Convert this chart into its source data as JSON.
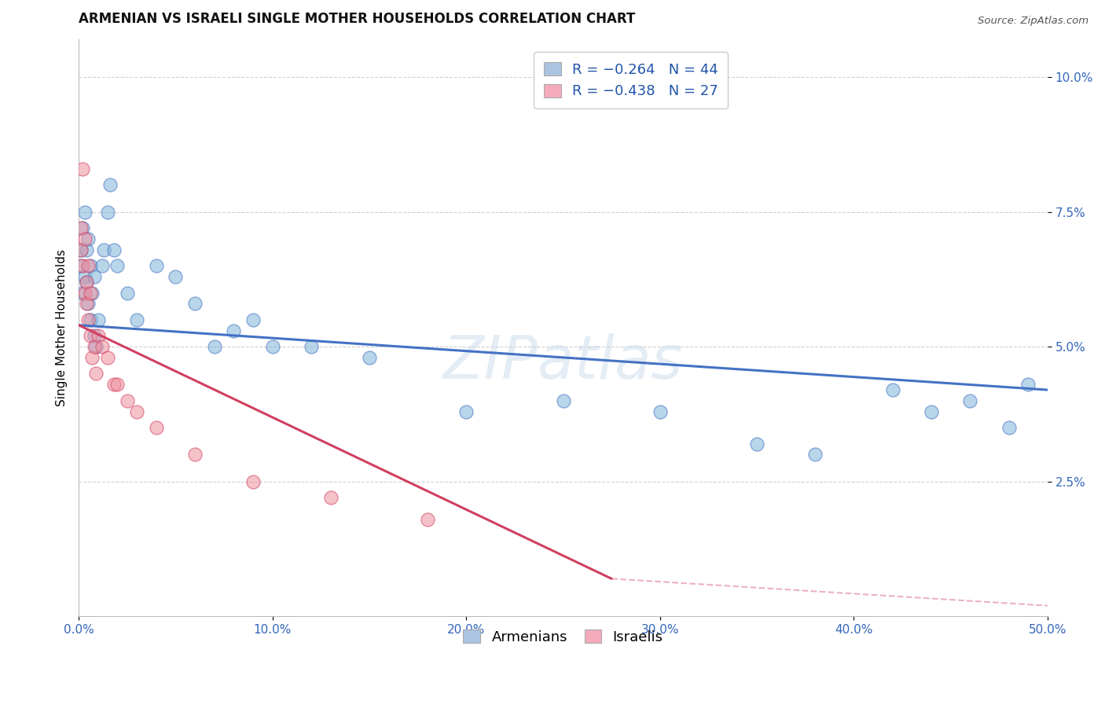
{
  "title": "ARMENIAN VS ISRAELI SINGLE MOTHER HOUSEHOLDS CORRELATION CHART",
  "source": "Source: ZipAtlas.com",
  "ylabel": "Single Mother Households",
  "xlim": [
    0.0,
    0.5
  ],
  "ylim": [
    0.0,
    0.107
  ],
  "legend_entries": [
    {
      "label": "R = −0.264   N = 44",
      "color": "#aac4e2"
    },
    {
      "label": "R = −0.438   N = 27",
      "color": "#f5aabb"
    }
  ],
  "legend_bottom": [
    "Armenians",
    "Israelis"
  ],
  "legend_bottom_colors": [
    "#aac4e2",
    "#f5aabb"
  ],
  "armenians_x": [
    0.001,
    0.001,
    0.002,
    0.002,
    0.003,
    0.003,
    0.004,
    0.004,
    0.005,
    0.005,
    0.006,
    0.006,
    0.007,
    0.008,
    0.008,
    0.009,
    0.01,
    0.012,
    0.013,
    0.015,
    0.016,
    0.018,
    0.02,
    0.025,
    0.03,
    0.04,
    0.05,
    0.06,
    0.07,
    0.09,
    0.12,
    0.15,
    0.2,
    0.3,
    0.38,
    0.42,
    0.44,
    0.46,
    0.48,
    0.49,
    0.35,
    0.25,
    0.08,
    0.1
  ],
  "armenians_y": [
    0.068,
    0.065,
    0.072,
    0.06,
    0.075,
    0.063,
    0.068,
    0.062,
    0.07,
    0.058,
    0.065,
    0.055,
    0.06,
    0.063,
    0.052,
    0.05,
    0.055,
    0.065,
    0.068,
    0.075,
    0.08,
    0.068,
    0.065,
    0.06,
    0.055,
    0.065,
    0.063,
    0.058,
    0.05,
    0.055,
    0.05,
    0.048,
    0.038,
    0.038,
    0.03,
    0.042,
    0.038,
    0.04,
    0.035,
    0.043,
    0.032,
    0.04,
    0.053,
    0.05
  ],
  "israelis_x": [
    0.001,
    0.001,
    0.002,
    0.002,
    0.003,
    0.003,
    0.004,
    0.004,
    0.005,
    0.005,
    0.006,
    0.006,
    0.007,
    0.008,
    0.009,
    0.01,
    0.012,
    0.015,
    0.018,
    0.02,
    0.025,
    0.03,
    0.04,
    0.06,
    0.09,
    0.13,
    0.18
  ],
  "israelis_y": [
    0.072,
    0.068,
    0.083,
    0.065,
    0.07,
    0.06,
    0.062,
    0.058,
    0.065,
    0.055,
    0.052,
    0.06,
    0.048,
    0.05,
    0.045,
    0.052,
    0.05,
    0.048,
    0.043,
    0.043,
    0.04,
    0.038,
    0.035,
    0.03,
    0.025,
    0.022,
    0.018
  ],
  "blue_line_x": [
    0.0,
    0.5
  ],
  "blue_line_y": [
    0.054,
    0.042
  ],
  "pink_line_x": [
    0.0,
    0.275
  ],
  "pink_line_y": [
    0.054,
    0.007
  ],
  "blue_color": "#4472c4",
  "pink_color": "#d04060",
  "scatter_blue": "#7fb3d9",
  "scatter_pink": "#f090a0",
  "watermark": "ZIPatlas",
  "grid_color": "#d0d0d0",
  "background_color": "#ffffff",
  "title_fontsize": 12,
  "axis_label_fontsize": 11,
  "tick_fontsize": 11,
  "legend_fontsize": 13,
  "marker_size": 150
}
